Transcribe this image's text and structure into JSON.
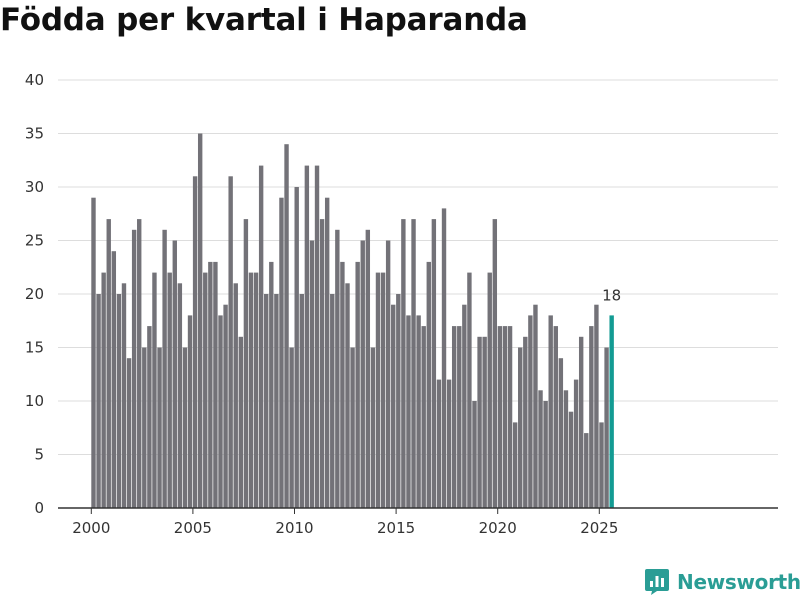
{
  "chart_data": {
    "type": "bar",
    "title": "Födda per kvartal i Haparanda",
    "xlabel": "",
    "ylabel": "",
    "ylim": [
      0,
      40
    ],
    "y_ticks": [
      0,
      5,
      10,
      15,
      20,
      25,
      30,
      35,
      40
    ],
    "x_ticks": [
      2000,
      2005,
      2010,
      2015,
      2020,
      2025
    ],
    "x_start": 2000,
    "periods_per_year": 4,
    "grid": true,
    "bar_color": "#737278",
    "highlight_color": "#139b93",
    "highlight_label": "18",
    "series": [
      {
        "name": "Födda",
        "values": [
          29,
          20,
          22,
          27,
          24,
          20,
          21,
          14,
          26,
          27,
          15,
          17,
          22,
          15,
          26,
          22,
          25,
          21,
          15,
          18,
          31,
          35,
          22,
          23,
          23,
          18,
          19,
          31,
          21,
          16,
          27,
          22,
          22,
          32,
          20,
          23,
          20,
          29,
          34,
          15,
          30,
          20,
          32,
          25,
          32,
          27,
          29,
          20,
          26,
          23,
          21,
          15,
          23,
          25,
          26,
          15,
          22,
          22,
          25,
          19,
          20,
          27,
          18,
          27,
          18,
          17,
          23,
          27,
          12,
          28,
          12,
          17,
          17,
          19,
          22,
          10,
          16,
          16,
          22,
          27,
          17,
          17,
          17,
          8,
          15,
          16,
          18,
          19,
          11,
          10,
          18,
          17,
          14,
          11,
          9,
          12,
          16,
          7,
          17,
          19,
          8,
          15,
          18
        ]
      }
    ]
  },
  "branding": {
    "name": "Newsworthy",
    "color": "#2a9d95"
  }
}
